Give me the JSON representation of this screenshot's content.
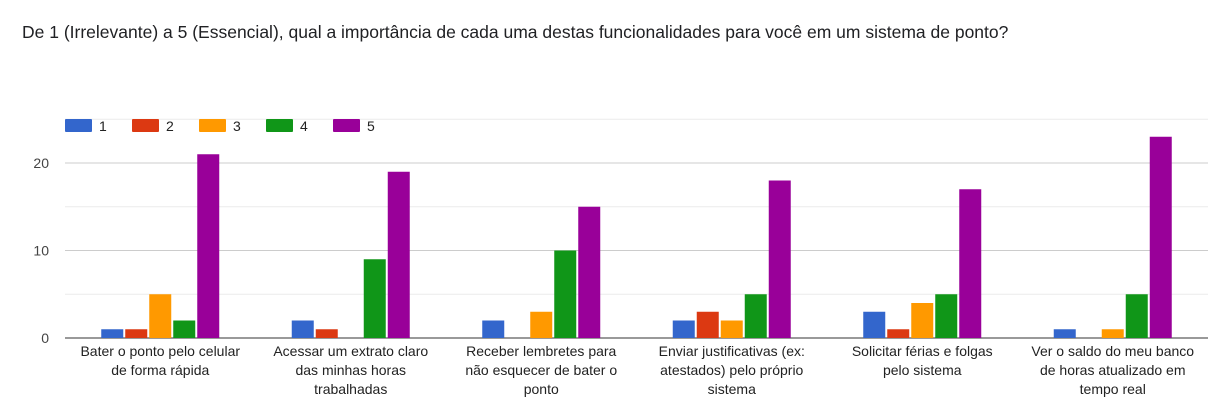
{
  "title": "De 1 (Irrelevante) a 5 (Essencial), qual a importância de cada uma destas funcionalidades para você em um sistema de ponto?",
  "chart_data": {
    "type": "bar",
    "categories": [
      [
        "Bater o ponto pelo celular",
        "de forma rápida"
      ],
      [
        "Acessar um extrato claro",
        "das minhas horas",
        "trabalhadas"
      ],
      [
        "Receber lembretes para",
        "não esquecer de bater o",
        "ponto"
      ],
      [
        "Enviar justificativas (ex:",
        "atestados) pelo próprio",
        "sistema"
      ],
      [
        "Solicitar férias e folgas",
        "pelo sistema"
      ],
      [
        "Ver o saldo do meu banco",
        "de horas atualizado em",
        "tempo real"
      ]
    ],
    "series": [
      {
        "name": "1",
        "color": "#3366cc",
        "values": [
          1,
          2,
          2,
          2,
          3,
          1
        ]
      },
      {
        "name": "2",
        "color": "#dc3912",
        "values": [
          1,
          1,
          0,
          3,
          1,
          0
        ]
      },
      {
        "name": "3",
        "color": "#ff9900",
        "values": [
          5,
          0,
          3,
          2,
          4,
          1
        ]
      },
      {
        "name": "4",
        "color": "#109618",
        "values": [
          2,
          9,
          10,
          5,
          5,
          5
        ]
      },
      {
        "name": "5",
        "color": "#990099",
        "values": [
          21,
          19,
          15,
          18,
          17,
          23
        ]
      }
    ],
    "ylim": [
      0,
      25
    ],
    "yticks": [
      0,
      10,
      20
    ],
    "grid": true,
    "legend": "top-left"
  }
}
